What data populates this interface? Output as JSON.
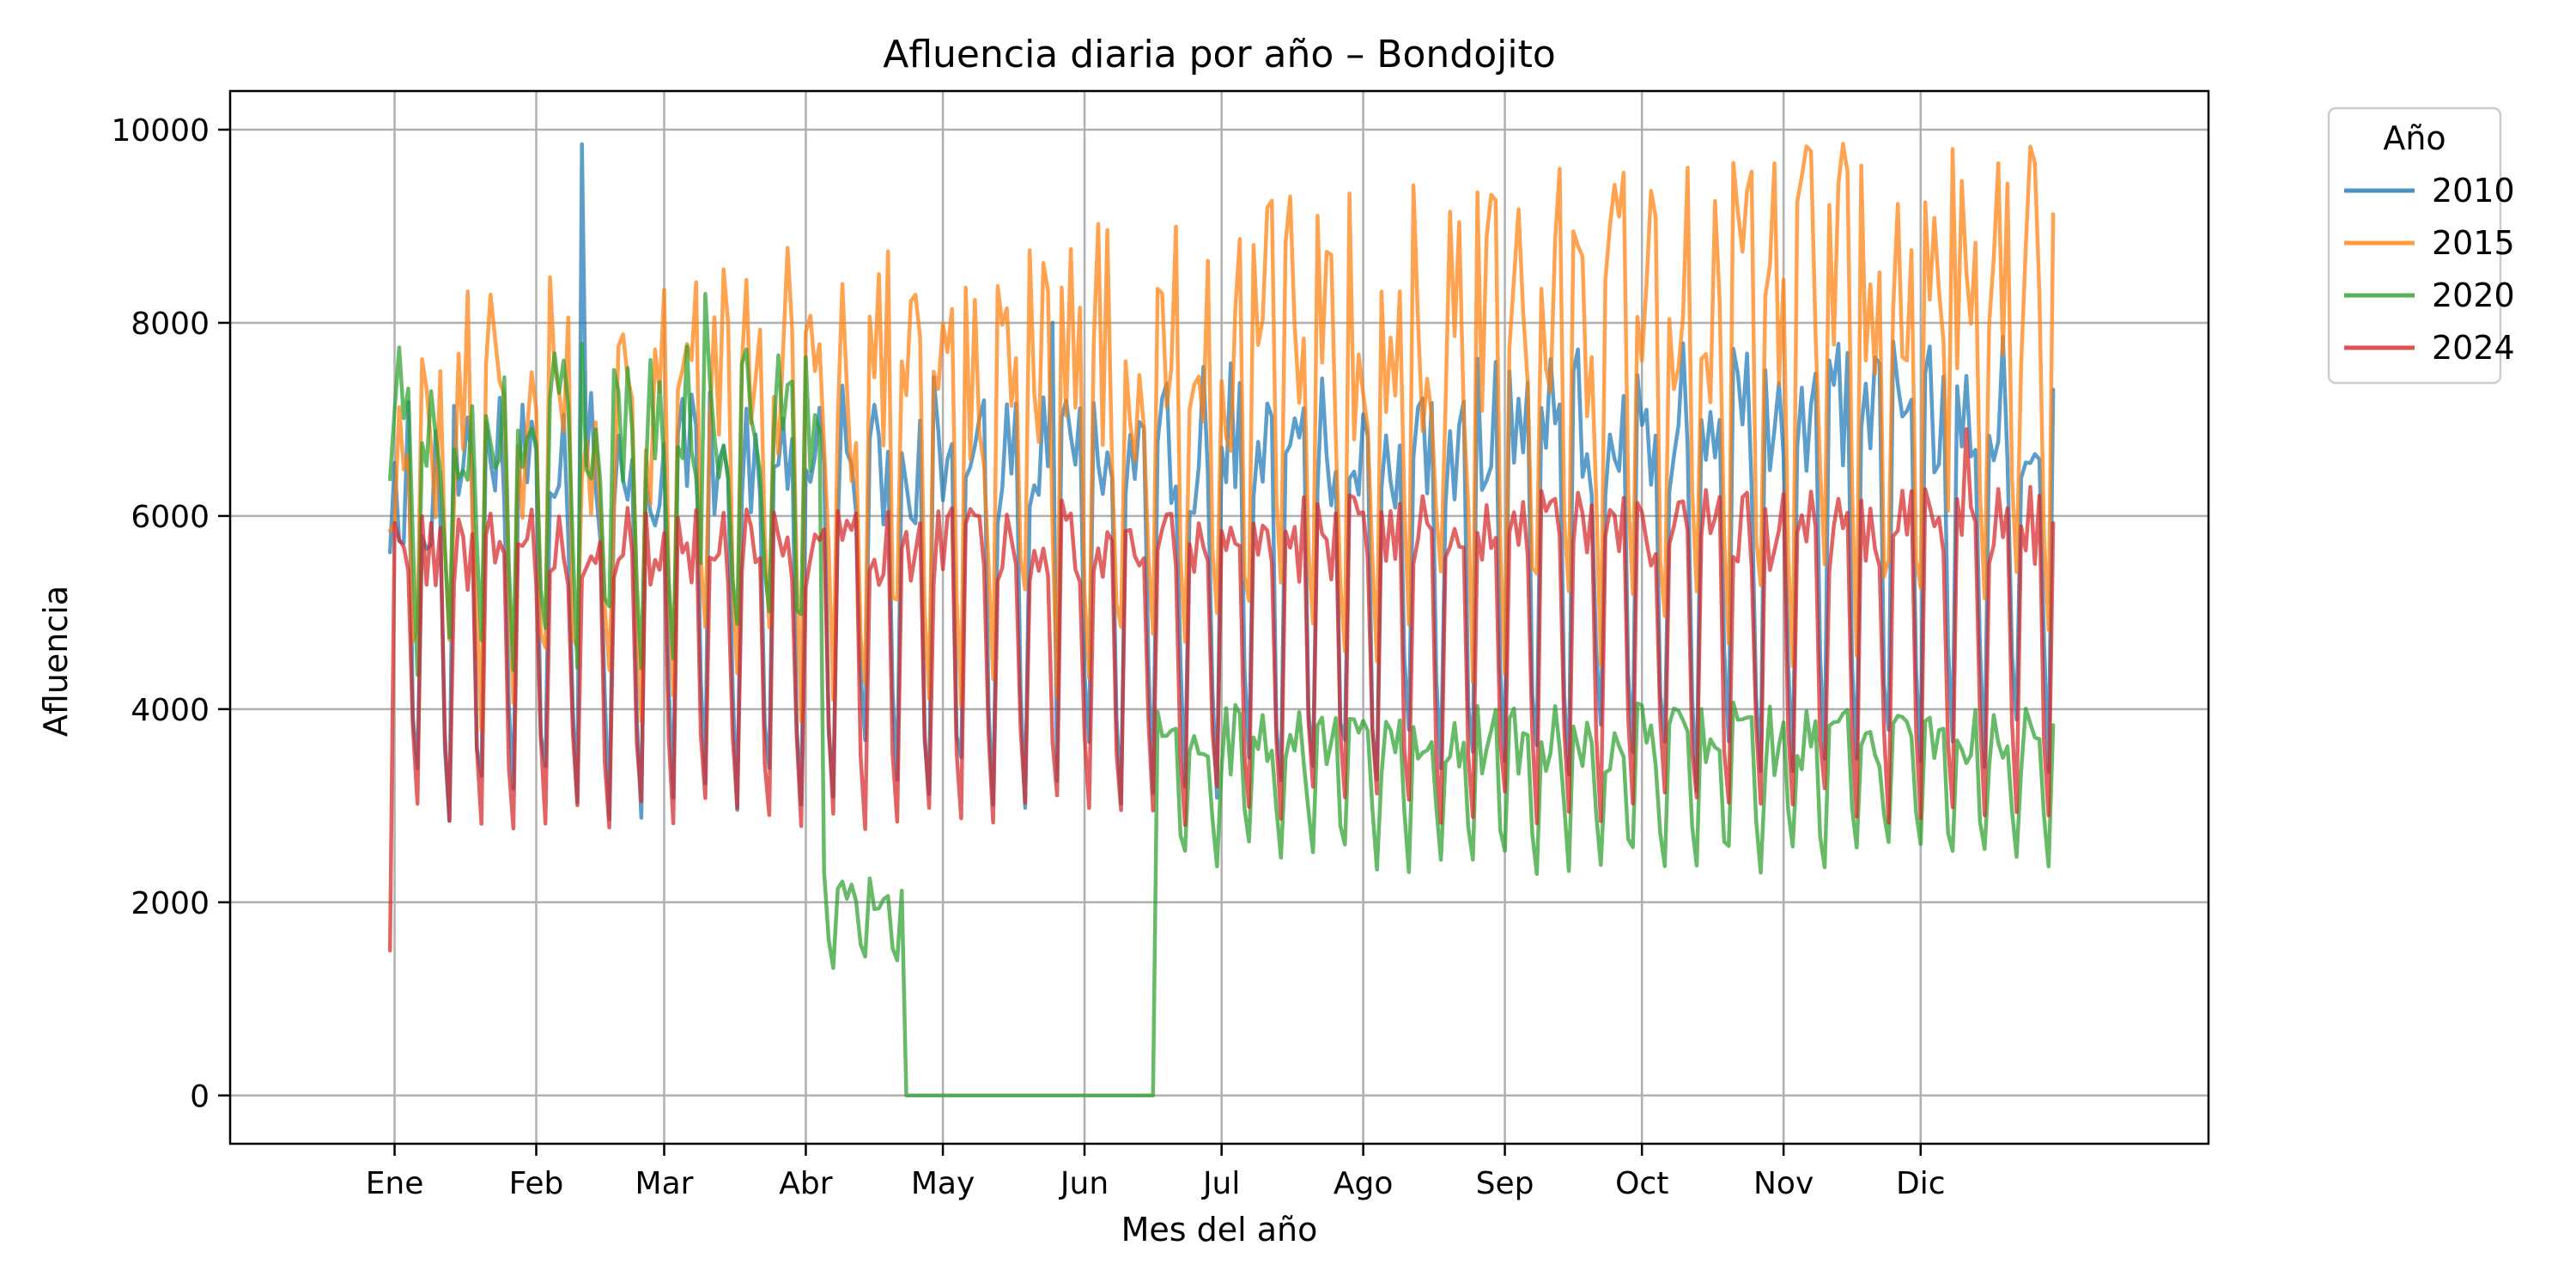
{
  "chart_data": {
    "type": "line",
    "title": "Afluencia diaria por año – Bondojito",
    "xlabel": "Mes del año",
    "ylabel": "Afluencia",
    "x_domain_days": [
      -35,
      398
    ],
    "ylim": [
      -500,
      10400
    ],
    "x_ticks": [
      {
        "day": 1,
        "label": "Ene"
      },
      {
        "day": 32,
        "label": "Feb"
      },
      {
        "day": 60,
        "label": "Mar"
      },
      {
        "day": 91,
        "label": "Abr"
      },
      {
        "day": 121,
        "label": "May"
      },
      {
        "day": 152,
        "label": "Jun"
      },
      {
        "day": 182,
        "label": "Jul"
      },
      {
        "day": 213,
        "label": "Ago"
      },
      {
        "day": 244,
        "label": "Sep"
      },
      {
        "day": 274,
        "label": "Oct"
      },
      {
        "day": 305,
        "label": "Nov"
      },
      {
        "day": 335,
        "label": "Dic"
      }
    ],
    "y_ticks": [
      0,
      2000,
      4000,
      6000,
      8000,
      10000
    ],
    "grid": true,
    "legend": {
      "title": "Año",
      "placement": "outside-top-right"
    },
    "series": [
      {
        "name": "2010",
        "color": "#1f77b4",
        "seed": 2010,
        "weekday": 6400,
        "weekend": 3200,
        "trend": 800,
        "amp": 1600,
        "events": [
          {
            "day": 42,
            "value": 9850
          },
          {
            "day": 145,
            "value": 8000
          }
        ]
      },
      {
        "name": "2015",
        "color": "#ff7f0e",
        "seed": 2015,
        "weekday": 7100,
        "weekend": 4300,
        "trend": 1700,
        "amp": 2600,
        "events": [
          {
            "day": 342,
            "value": 9800
          },
          {
            "day": 303,
            "value": 9650
          }
        ]
      },
      {
        "name": "2020",
        "color": "#2ca02c",
        "seed": 2020,
        "weekday": 7100,
        "weekend": 4700,
        "trend": 0,
        "amp": 1500,
        "covid": true,
        "events": [
          {
            "day": 69,
            "value": 8300
          }
        ]
      },
      {
        "name": "2024",
        "color": "#d62728",
        "seed": 2024,
        "weekday": 5600,
        "weekend": 2900,
        "trend": 300,
        "amp": 900,
        "events": [
          {
            "day": 0,
            "value": 1500
          },
          {
            "day": 345,
            "value": 6900
          }
        ]
      }
    ]
  }
}
